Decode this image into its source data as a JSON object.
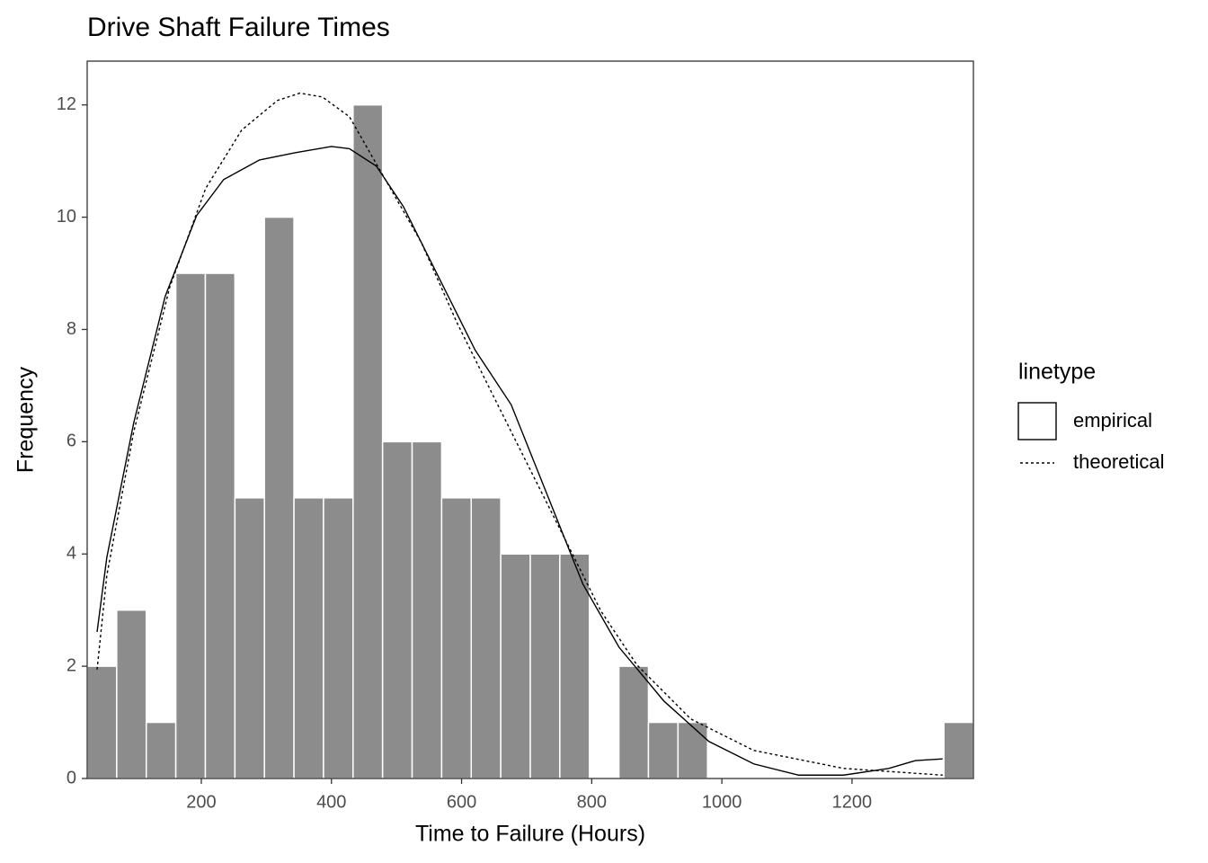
{
  "chart_data": {
    "type": "histogram",
    "title": "Drive Shaft Failure Times",
    "x_label": "Time to Failure (Hours)",
    "y_label": "Frequency",
    "color": "#8c8c8c",
    "bins": [
      24.6,
      70,
      115.4,
      160.8,
      206.2,
      251.6,
      297,
      342.4,
      387.8,
      433.2,
      478.6,
      524,
      569.4,
      614.8,
      660.2,
      705.6,
      751,
      796.4,
      841.8,
      887.2,
      932.6,
      978,
      1023.4,
      1068.8,
      1114.2,
      1159.6,
      1205,
      1250.4,
      1295.8,
      1341.2,
      1386.6
    ],
    "values": [
      2,
      3,
      1,
      9,
      9,
      5,
      10,
      5,
      5,
      12,
      6,
      6,
      5,
      5,
      4,
      4,
      4,
      0,
      2,
      1,
      1,
      0,
      0,
      0,
      0,
      0,
      0,
      0,
      0,
      1
    ],
    "xlim": [
      24.6,
      1386.6
    ],
    "ylim": [
      0,
      12.78
    ],
    "xticks": [
      200,
      400,
      600,
      800,
      1000,
      1200
    ],
    "yticks": [
      0,
      2,
      4,
      6,
      8,
      10,
      12
    ],
    "legend_title": "linetype",
    "series": [
      {
        "name": "empirical",
        "color": "#000000",
        "linestyle": "solid",
        "x": [
          39.8,
          54.8,
          96.2,
          144.5,
          192.8,
          234.3,
          289.5,
          344.8,
          400,
          427.6,
          469,
          510.5,
          565.7,
          620.9,
          676.2,
          731.4,
          786.6,
          841.9,
          910.9,
          980,
          1049,
          1118,
          1187,
          1256.4,
          1297.8,
          1339.3
        ],
        "values": [
          2.61,
          3.94,
          6.34,
          8.59,
          10.03,
          10.67,
          11.02,
          11.15,
          11.26,
          11.22,
          10.91,
          10.19,
          8.91,
          7.63,
          6.66,
          5.06,
          3.46,
          2.34,
          1.38,
          0.66,
          0.26,
          0.06,
          0.06,
          0.18,
          0.32,
          0.35
        ]
      },
      {
        "name": "theoretical",
        "color": "#000000",
        "linestyle": "dotted",
        "x": [
          39.8,
          54.8,
          96.2,
          151.4,
          206.6,
          261.9,
          317.1,
          351.6,
          386.2,
          427.6,
          482.8,
          538.1,
          593.3,
          648.6,
          703.8,
          759.1,
          814.3,
          869.6,
          952.4,
          1049,
          1187,
          1339.3
        ],
        "values": [
          1.94,
          3.62,
          6.18,
          8.75,
          10.51,
          11.55,
          12.08,
          12.21,
          12.14,
          11.79,
          10.67,
          9.55,
          8.11,
          6.82,
          5.54,
          4.26,
          2.98,
          2.02,
          1.06,
          0.5,
          0.18,
          0.06
        ]
      }
    ]
  }
}
